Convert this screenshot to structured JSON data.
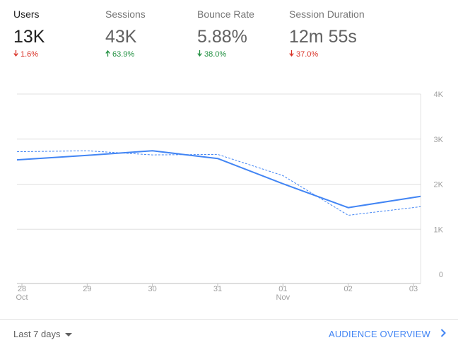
{
  "colors": {
    "accent": "#4285f4",
    "negative": "#d93025",
    "positive": "#1e8e3e",
    "grid": "#e0e0e0",
    "axis_text": "#9e9e9e"
  },
  "metrics": [
    {
      "label": "Users",
      "value": "13K",
      "delta": "1.6%",
      "direction": "down",
      "active": true
    },
    {
      "label": "Sessions",
      "value": "43K",
      "delta": "63.9%",
      "direction": "up",
      "active": false
    },
    {
      "label": "Bounce Rate",
      "value": "5.88%",
      "delta": "38.0%",
      "direction": "down",
      "active": false
    },
    {
      "label": "Session Duration",
      "value": "12m 55s",
      "delta": "37.0%",
      "direction": "down",
      "active": false
    }
  ],
  "footer": {
    "range_label": "Last 7 days",
    "overview_label": "AUDIENCE OVERVIEW"
  },
  "chart_data": {
    "type": "line",
    "x": [
      "28",
      "29",
      "30",
      "31",
      "01",
      "02",
      "03"
    ],
    "x_sublabels": [
      "Oct",
      "",
      "",
      "",
      "Nov",
      "",
      ""
    ],
    "y_ticks": [
      "0",
      "1K",
      "2K",
      "3K",
      "4K"
    ],
    "ylim": [
      0,
      4000
    ],
    "grid": true,
    "series": [
      {
        "style": "solid",
        "values": [
          2540,
          2640,
          2740,
          2570,
          2010,
          1480,
          1730
        ]
      },
      {
        "style": "dashed",
        "values": [
          2720,
          2740,
          2650,
          2660,
          2190,
          1310,
          1500
        ]
      }
    ]
  }
}
